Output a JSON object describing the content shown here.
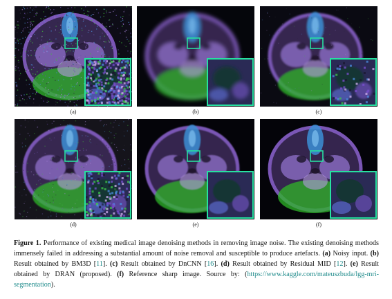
{
  "panels": [
    {
      "label": "(a)",
      "variant": "noisy"
    },
    {
      "label": "(b)",
      "variant": "blur"
    },
    {
      "label": "(c)",
      "variant": "smooth"
    },
    {
      "label": "(d)",
      "variant": "mid"
    },
    {
      "label": "(e)",
      "variant": "clean"
    },
    {
      "label": "(f)",
      "variant": "sharp"
    }
  ],
  "caption": {
    "fig_label": "Figure 1.",
    "t1": " Performance of existing medical image denoising methods in removing image noise. The existing denoising methods immensely failed in addressing a substantial amount of noise removal and susceptible to produce artefacts. ",
    "a_tag": "(a)",
    "a_text": " Noisy input. ",
    "b_tag": "(b)",
    "b_text": " Result obtained by BM3D [",
    "b_ref": "11",
    "b_end": "]. ",
    "c_tag": "(c)",
    "c_text": " Result obtained by DnCNN [",
    "c_ref": "16",
    "c_end": "]. ",
    "d_tag": "(d)",
    "d_text": " Result obtained by Residual MID [",
    "d_ref": "12",
    "d_end": "]. ",
    "e_tag": "(e)",
    "e_text": " Result obtained by DRAN (proposed). ",
    "f_tag": "(f)",
    "f_text": " Reference sharp image. Source by: (",
    "link": "https://www.kaggle.com/mateuszbuda/lgg-mri-segmentation",
    "tail": ")."
  },
  "colors": {
    "highlight_box": "#27e0a0",
    "link": "#1f8b8b",
    "tissue_purple": "#7a56b5",
    "tissue_green": "#2fb52a",
    "tissue_blue": "#3c8fd6"
  }
}
